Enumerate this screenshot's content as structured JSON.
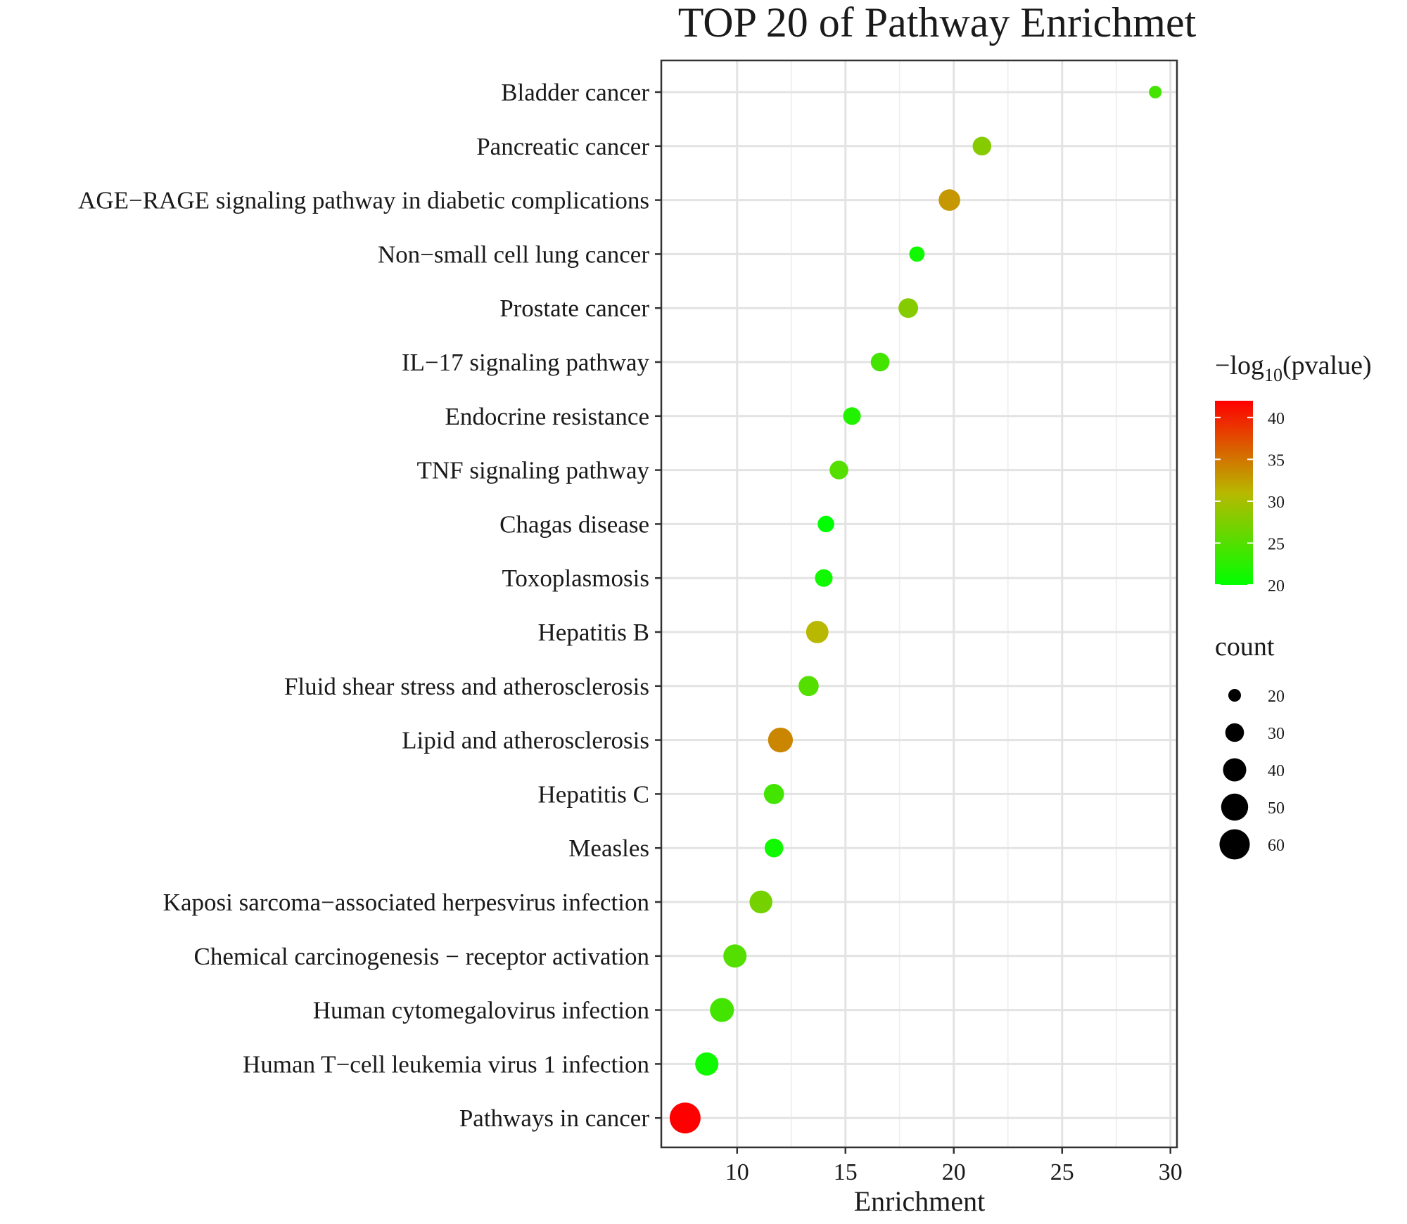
{
  "chart_data": {
    "type": "scatter",
    "title": "TOP 20 of Pathway Enrichmet",
    "xlabel": "Enrichment",
    "ylabel": "",
    "xlim": [
      6.5,
      30.3
    ],
    "xticks": [
      10,
      15,
      20,
      25,
      30
    ],
    "grid": true,
    "legend_position": "right",
    "color_legend": {
      "title_prefix": "−log",
      "title_subscript": "10",
      "title_suffix": "(pvalue)",
      "range": [
        20,
        42
      ],
      "ticks": [
        20,
        25,
        30,
        35,
        40
      ],
      "low_color": "#00ff00",
      "mid_color": "#b8b800",
      "high_color": "#ff0000"
    },
    "size_legend": {
      "title": "count",
      "ticks": [
        20,
        30,
        40,
        50,
        60
      ],
      "range": [
        20,
        62
      ]
    },
    "categories": [
      "Bladder cancer",
      "Pancreatic cancer",
      "AGE−RAGE signaling pathway in diabetic complications",
      "Non−small cell lung cancer",
      "Prostate cancer",
      "IL−17 signaling pathway",
      "Endocrine resistance",
      "TNF signaling pathway",
      "Chagas disease",
      "Toxoplasmosis",
      "Hepatitis B",
      "Fluid shear stress and atherosclerosis",
      "Lipid and atherosclerosis",
      "Hepatitis C",
      "Measles",
      "Kaposi sarcoma−associated herpesvirus infection",
      "Chemical carcinogenesis − receptor activation",
      "Human cytomegalovirus infection",
      "Human T−cell leukemia virus 1 infection",
      "Pathways in cancer"
    ],
    "points": [
      {
        "pathway": "Bladder cancer",
        "enrichment": 29.3,
        "neg_log10_pvalue": 24,
        "count": 20
      },
      {
        "pathway": "Pancreatic cancer",
        "enrichment": 21.3,
        "neg_log10_pvalue": 28,
        "count": 30
      },
      {
        "pathway": "AGE−RAGE signaling pathway in diabetic complications",
        "enrichment": 19.8,
        "neg_log10_pvalue": 33,
        "count": 36
      },
      {
        "pathway": "Non−small cell lung cancer",
        "enrichment": 18.3,
        "neg_log10_pvalue": 21,
        "count": 24
      },
      {
        "pathway": "Prostate cancer",
        "enrichment": 17.9,
        "neg_log10_pvalue": 28,
        "count": 32
      },
      {
        "pathway": "IL−17 signaling pathway",
        "enrichment": 16.6,
        "neg_log10_pvalue": 24,
        "count": 30
      },
      {
        "pathway": "Endocrine resistance",
        "enrichment": 15.3,
        "neg_log10_pvalue": 22,
        "count": 28
      },
      {
        "pathway": "TNF signaling pathway",
        "enrichment": 14.7,
        "neg_log10_pvalue": 25,
        "count": 30
      },
      {
        "pathway": "Chagas disease",
        "enrichment": 14.1,
        "neg_log10_pvalue": 20,
        "count": 26
      },
      {
        "pathway": "Toxoplasmosis",
        "enrichment": 14.0,
        "neg_log10_pvalue": 21,
        "count": 28
      },
      {
        "pathway": "Hepatitis B",
        "enrichment": 13.7,
        "neg_log10_pvalue": 31,
        "count": 38
      },
      {
        "pathway": "Fluid shear stress and atherosclerosis",
        "enrichment": 13.3,
        "neg_log10_pvalue": 25,
        "count": 33
      },
      {
        "pathway": "Lipid and atherosclerosis",
        "enrichment": 12.0,
        "neg_log10_pvalue": 34,
        "count": 44
      },
      {
        "pathway": "Hepatitis C",
        "enrichment": 11.7,
        "neg_log10_pvalue": 24,
        "count": 33
      },
      {
        "pathway": "Measles",
        "enrichment": 11.7,
        "neg_log10_pvalue": 21,
        "count": 30
      },
      {
        "pathway": "Kaposi sarcoma−associated herpesvirus infection",
        "enrichment": 11.1,
        "neg_log10_pvalue": 27,
        "count": 39
      },
      {
        "pathway": "Chemical carcinogenesis − receptor activation",
        "enrichment": 9.9,
        "neg_log10_pvalue": 25,
        "count": 40
      },
      {
        "pathway": "Human cytomegalovirus infection",
        "enrichment": 9.3,
        "neg_log10_pvalue": 24,
        "count": 42
      },
      {
        "pathway": "Human T−cell leukemia virus 1 infection",
        "enrichment": 8.6,
        "neg_log10_pvalue": 21,
        "count": 40
      },
      {
        "pathway": "Pathways in cancer",
        "enrichment": 7.6,
        "neg_log10_pvalue": 42,
        "count": 62
      }
    ]
  }
}
